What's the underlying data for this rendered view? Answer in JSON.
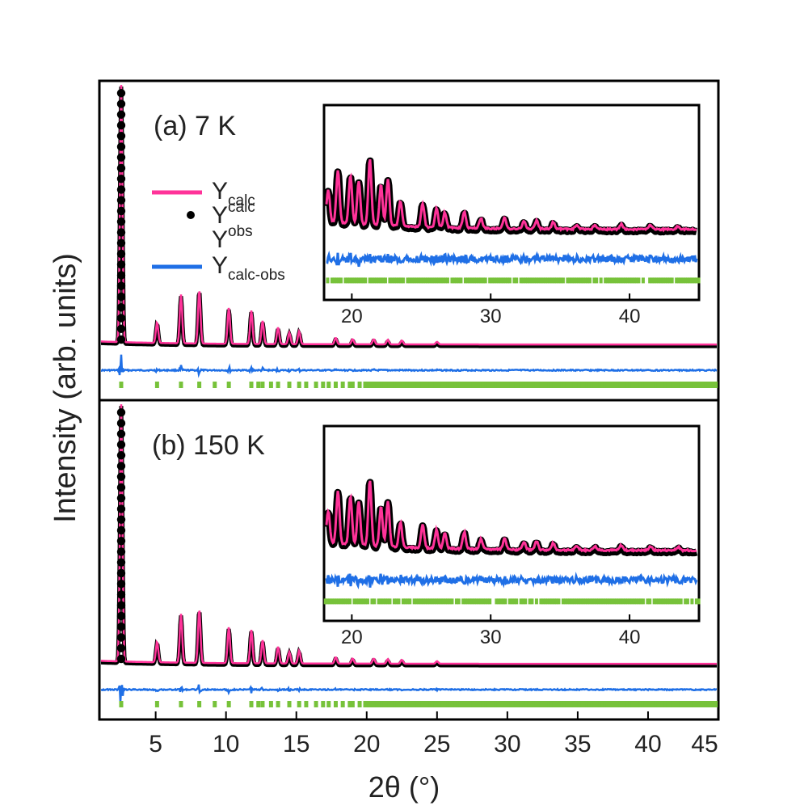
{
  "chart_data": {
    "type": "line",
    "title": "",
    "xlabel": "2θ (°)",
    "ylabel": "Intensity (arb. units)",
    "xlim": [
      1,
      45
    ],
    "xticks": [
      5,
      10,
      15,
      20,
      25,
      30,
      35,
      40,
      45
    ],
    "inset_xlim": [
      18,
      45
    ],
    "inset_xticks": [
      20,
      30,
      40
    ],
    "legend": {
      "position": "upper-left of panel (a)",
      "entries": [
        {
          "base": "Y",
          "sub": "calc",
          "sup": "",
          "style": "line",
          "color": "#ff3399"
        },
        {
          "base": "Y",
          "sub": "",
          "sup": "calc",
          "style": "dot",
          "color": "#000000"
        },
        {
          "base": "Y",
          "sub": "",
          "sup": "obs",
          "style": "none",
          "color": "#000000"
        },
        {
          "base": "Y",
          "sub": "calc-obs",
          "sup": "",
          "style": "line",
          "color": "#1f6fe6"
        }
      ]
    },
    "colors": {
      "calc": "#ff3399",
      "obs": "#000000",
      "diff": "#1f6fe6",
      "bragg": "#77c23a"
    },
    "peaks": [
      {
        "x": 2.55,
        "h": 1.0
      },
      {
        "x": 5.1,
        "h": 0.08
      },
      {
        "x": 6.8,
        "h": 0.19
      },
      {
        "x": 8.1,
        "h": 0.21
      },
      {
        "x": 10.2,
        "h": 0.14
      },
      {
        "x": 11.8,
        "h": 0.13
      },
      {
        "x": 12.6,
        "h": 0.09
      },
      {
        "x": 13.7,
        "h": 0.065
      },
      {
        "x": 14.5,
        "h": 0.045
      },
      {
        "x": 15.2,
        "h": 0.05
      },
      {
        "x": 17.8,
        "h": 0.025
      },
      {
        "x": 19.0,
        "h": 0.02
      },
      {
        "x": 20.5,
        "h": 0.02
      },
      {
        "x": 21.5,
        "h": 0.018
      },
      {
        "x": 22.5,
        "h": 0.015
      },
      {
        "x": 25.0,
        "h": 0.01
      }
    ],
    "inset_peaks": [
      {
        "x": 18.3,
        "h": 0.38
      },
      {
        "x": 19.0,
        "h": 0.62
      },
      {
        "x": 19.9,
        "h": 0.58
      },
      {
        "x": 20.5,
        "h": 0.52
      },
      {
        "x": 21.3,
        "h": 0.78
      },
      {
        "x": 22.1,
        "h": 0.48
      },
      {
        "x": 22.6,
        "h": 0.55
      },
      {
        "x": 23.5,
        "h": 0.3
      },
      {
        "x": 25.1,
        "h": 0.28
      },
      {
        "x": 26.1,
        "h": 0.22
      },
      {
        "x": 26.7,
        "h": 0.18
      },
      {
        "x": 28.1,
        "h": 0.2
      },
      {
        "x": 29.3,
        "h": 0.12
      },
      {
        "x": 31.0,
        "h": 0.13
      },
      {
        "x": 32.4,
        "h": 0.09
      },
      {
        "x": 33.3,
        "h": 0.1
      },
      {
        "x": 34.5,
        "h": 0.08
      },
      {
        "x": 36.2,
        "h": 0.05
      },
      {
        "x": 37.5,
        "h": 0.05
      },
      {
        "x": 39.4,
        "h": 0.06
      },
      {
        "x": 41.5,
        "h": 0.05
      },
      {
        "x": 43.5,
        "h": 0.04
      }
    ],
    "bragg_positions": [
      2.55,
      5.1,
      6.8,
      8.1,
      9.2,
      10.2,
      11.8,
      12.3,
      12.6,
      13.2,
      13.7,
      14.5,
      15.2,
      15.7,
      16.4,
      16.9,
      17.3,
      17.8,
      18.3,
      18.8,
      19.0,
      19.5,
      19.9,
      20.3,
      20.5,
      20.9,
      21.3,
      21.7,
      22.1,
      22.3,
      22.6,
      23.0,
      23.5,
      23.8,
      24.3,
      24.7,
      25.1,
      25.5,
      25.8,
      26.1,
      26.4,
      26.7,
      27.0,
      27.4,
      27.8,
      28.1,
      28.5,
      28.9,
      29.3,
      29.7,
      30.1,
      30.5,
      31.0,
      31.4,
      31.8,
      32.2,
      32.4,
      32.8,
      33.3,
      33.7,
      34.1,
      34.5,
      34.9,
      35.3,
      35.8,
      36.2,
      36.6,
      37.0,
      37.5,
      37.9,
      38.3,
      38.7,
      39.1,
      39.4,
      39.8,
      40.2,
      40.6,
      41.0,
      41.5,
      41.9,
      42.3,
      42.7,
      43.1,
      43.5,
      43.9,
      44.3,
      44.7
    ],
    "panels": [
      {
        "label": "(a) 7 K"
      },
      {
        "label": "(b) 150 K"
      }
    ]
  }
}
